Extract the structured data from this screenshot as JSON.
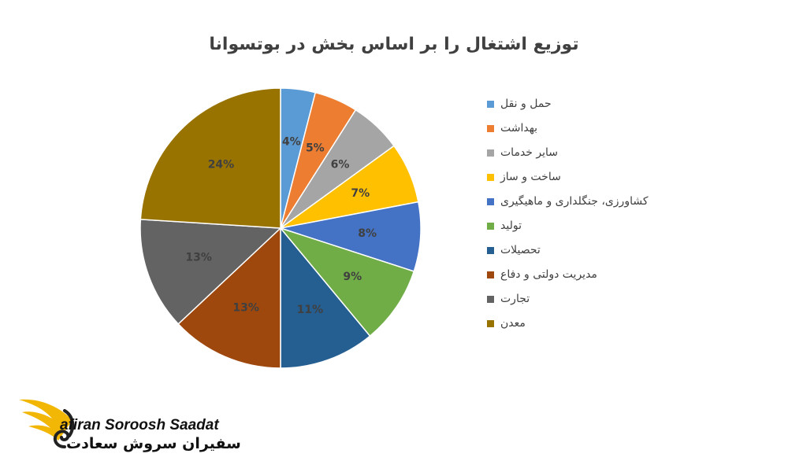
{
  "chart_data": {
    "type": "pie",
    "title": "توزیع اشتغال را بر اساس بخش در بوتسوانا",
    "legend_position": "right",
    "slices": [
      {
        "label": "حمل و نقل",
        "value": 4,
        "display": "4%",
        "color": "#5b9bd5"
      },
      {
        "label": "بهداشت",
        "value": 5,
        "display": "5%",
        "color": "#ed7d31"
      },
      {
        "label": "سایر خدمات",
        "value": 6,
        "display": "6%",
        "color": "#a5a5a5"
      },
      {
        "label": "ساخت و ساز",
        "value": 7,
        "display": "7%",
        "color": "#ffc000"
      },
      {
        "label": "کشاورزی، جنگلداری و ماهیگیری",
        "value": 8,
        "display": "8%",
        "color": "#4472c4"
      },
      {
        "label": "تولید",
        "value": 9,
        "display": "9%",
        "color": "#70ad47"
      },
      {
        "label": "تحصیلات",
        "value": 11,
        "display": "11%",
        "color": "#255e91"
      },
      {
        "label": "مدیریت دولتی و دفاع",
        "value": 13,
        "display": "13%",
        "color": "#9e480e"
      },
      {
        "label": "تجارت",
        "value": 13,
        "display": "13%",
        "color": "#636363"
      },
      {
        "label": "معدن",
        "value": 24,
        "display": "24%",
        "color": "#997300"
      }
    ]
  },
  "brand": {
    "name_en": "afiran Soroosh Saadat",
    "name_fa": "سفیران سروش سعادت"
  }
}
